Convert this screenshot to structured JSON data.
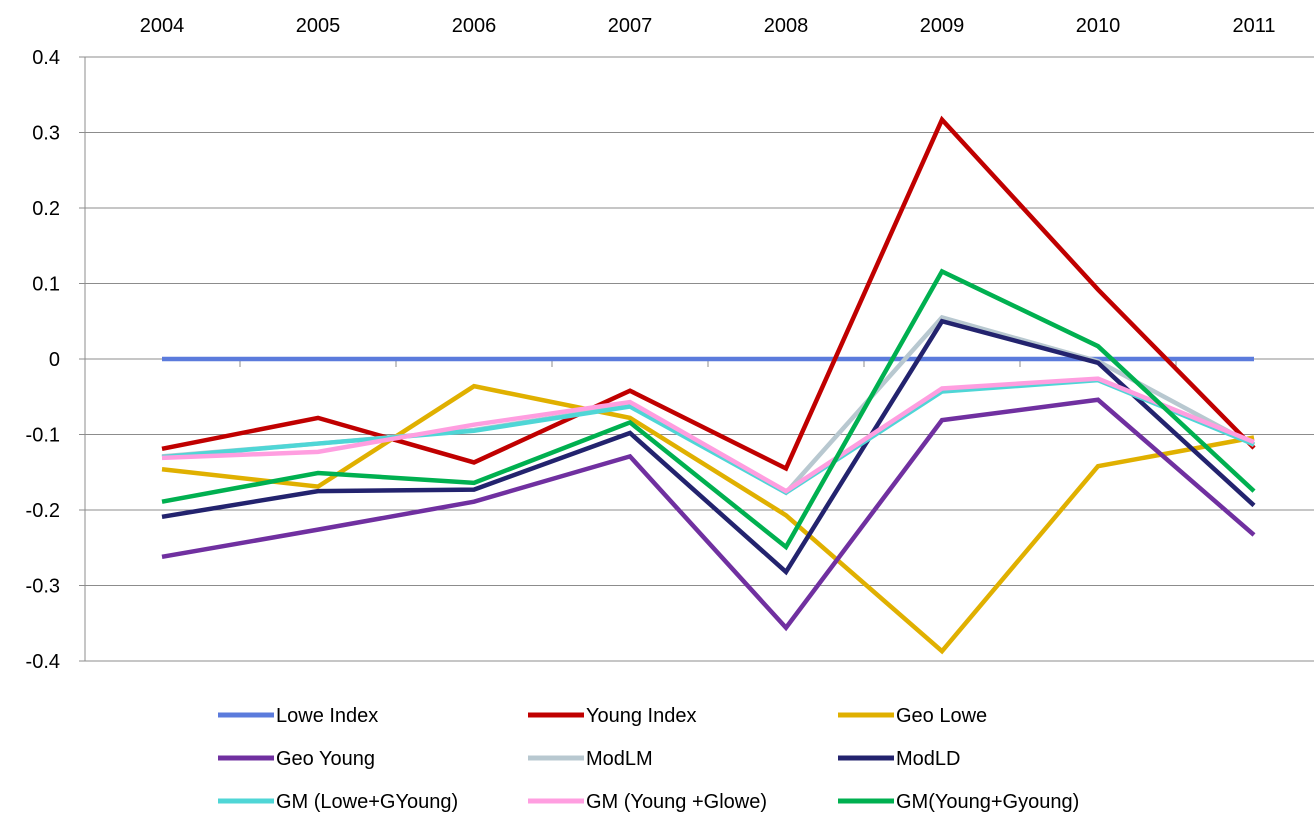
{
  "chart_data": {
    "type": "line",
    "title": "",
    "xlabel": "",
    "ylabel": "",
    "x": [
      "2004",
      "2005",
      "2006",
      "2007",
      "2008",
      "2009",
      "2010",
      "2011"
    ],
    "x_axis_position": "top",
    "ylim": [
      -0.4,
      0.4
    ],
    "yticks": [
      "0.4",
      "0.3",
      "0.2",
      "0.1",
      "0",
      "-0.1",
      "-0.2",
      "-0.3",
      "-0.4"
    ],
    "grid": true,
    "legend_position": "bottom",
    "series": [
      {
        "name": "Lowe Index",
        "color": "#5b7bdc",
        "values": [
          0,
          0,
          0,
          0,
          0,
          0,
          0,
          0
        ]
      },
      {
        "name": "Young Index",
        "color": "#c00000",
        "values": [
          -0.119,
          -0.078,
          -0.137,
          -0.042,
          -0.145,
          0.317,
          0.092,
          -0.118
        ]
      },
      {
        "name": "Geo Lowe",
        "color": "#e0b000",
        "values": [
          -0.146,
          -0.169,
          -0.036,
          -0.078,
          -0.207,
          -0.387,
          -0.142,
          -0.104
        ]
      },
      {
        "name": "Geo Young",
        "color": "#7030a0",
        "values": [
          -0.262,
          -0.226,
          -0.189,
          -0.129,
          -0.356,
          -0.081,
          -0.054,
          -0.233
        ]
      },
      {
        "name": "ModLM",
        "color": "#b8c8d0",
        "values": [
          -0.129,
          -0.112,
          -0.094,
          -0.062,
          -0.177,
          0.055,
          -0.003,
          -0.114
        ]
      },
      {
        "name": "ModLD",
        "color": "#23236e",
        "values": [
          -0.209,
          -0.175,
          -0.173,
          -0.098,
          -0.282,
          0.05,
          -0.005,
          -0.194
        ]
      },
      {
        "name": "GM (Lowe+GYoung)",
        "color": "#4fd6d6",
        "values": [
          -0.13,
          -0.112,
          -0.095,
          -0.063,
          -0.177,
          -0.043,
          -0.028,
          -0.113
        ]
      },
      {
        "name": "GM (Young +Glowe)",
        "color": "#ff9ee0",
        "values": [
          -0.131,
          -0.123,
          -0.087,
          -0.057,
          -0.175,
          -0.039,
          -0.026,
          -0.11
        ]
      },
      {
        "name": "GM(Young+Gyoung)",
        "color": "#00b050",
        "values": [
          -0.189,
          -0.151,
          -0.164,
          -0.084,
          -0.249,
          0.116,
          0.017,
          -0.175
        ]
      }
    ]
  }
}
